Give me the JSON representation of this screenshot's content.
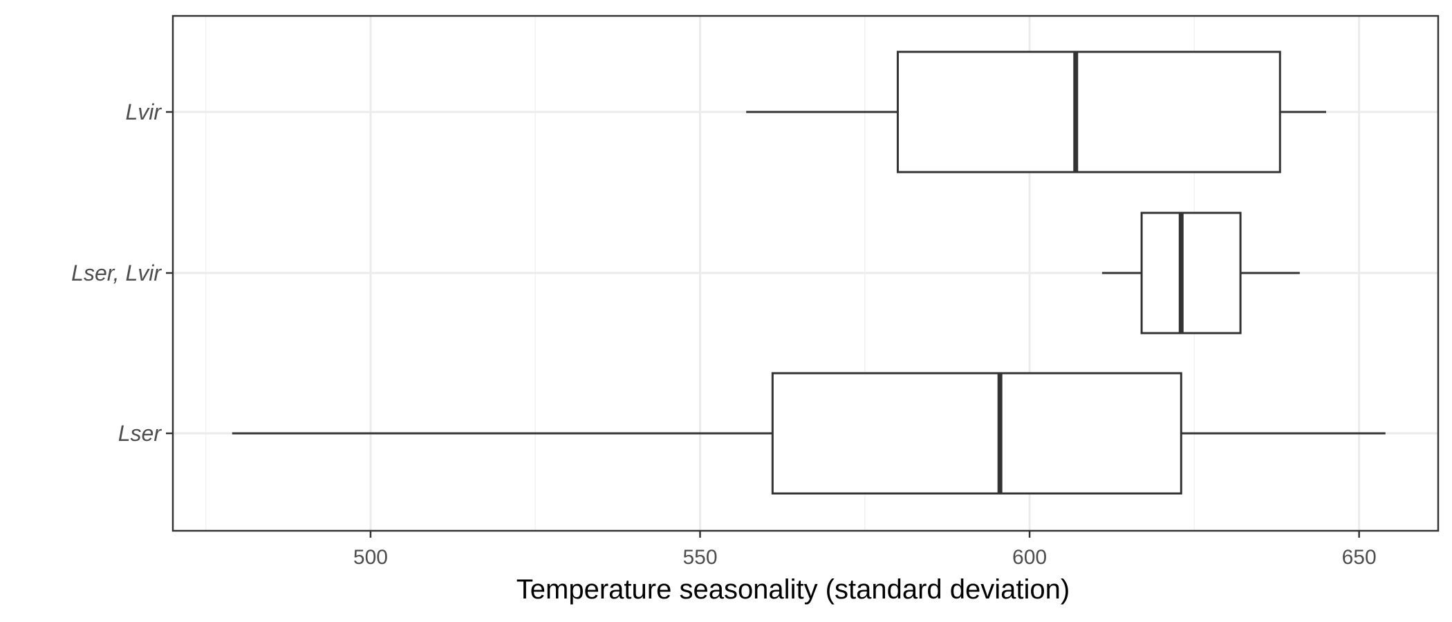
{
  "chart_data": {
    "type": "boxplot",
    "orientation": "horizontal",
    "title": "",
    "xlabel": "Temperature seasonality (standard deviation)",
    "ylabel": "",
    "xlim": [
      470,
      662
    ],
    "x_ticks": [
      500,
      550,
      600,
      650
    ],
    "x_minor_ticks": [
      475,
      525,
      575,
      625
    ],
    "grid": true,
    "categories": [
      "Lvir",
      "Lser, Lvir",
      "Lser"
    ],
    "boxes": [
      {
        "category": "Lvir",
        "whisker_low": 557,
        "q1": 580,
        "median": 607,
        "q3": 638,
        "whisker_high": 645
      },
      {
        "category": "Lser, Lvir",
        "whisker_low": 611,
        "q1": 617,
        "median": 623,
        "q3": 632,
        "whisker_high": 641
      },
      {
        "category": "Lser",
        "whisker_low": 479,
        "q1": 561,
        "median": 595.5,
        "q3": 623,
        "whisker_high": 654
      }
    ],
    "colors": {
      "box_line": "#333333",
      "box_fill": "#ffffff",
      "grid_major": "#ebebeb",
      "grid_minor": "#f2f2f2",
      "panel_border": "#333333"
    }
  }
}
